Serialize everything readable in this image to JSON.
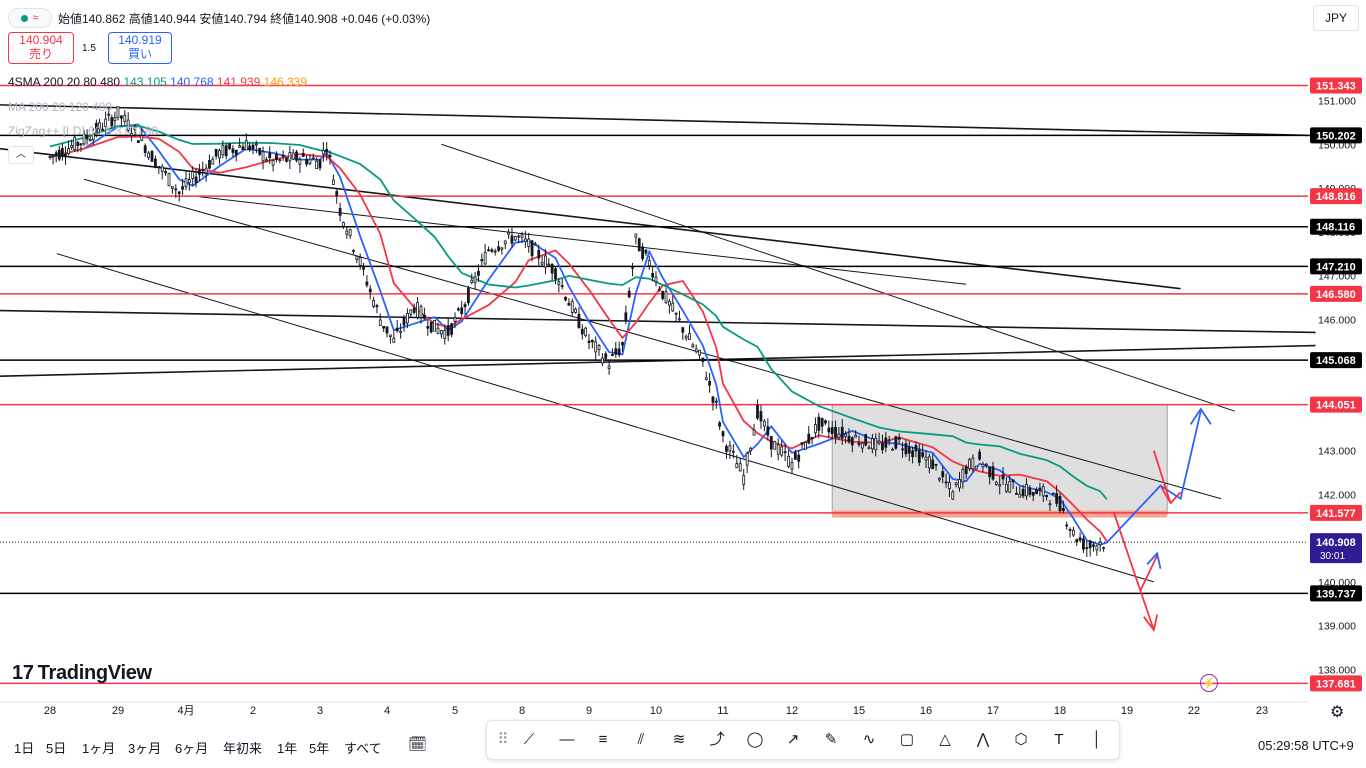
{
  "header": {
    "ohlc_text": "始値140.862  高値140.944  安値140.794  終値140.908  +0.046 (+0.03%)",
    "sell_price": "140.904",
    "sell_label": "売り",
    "buy_price": "140.919",
    "buy_label": "買い",
    "spread": "1.5",
    "currency": "JPY"
  },
  "indicators": {
    "sma_label": "4SMA 200 20 80 480",
    "sma_values": [
      {
        "value": "143.105",
        "color": "#089981"
      },
      {
        "value": "140.768",
        "color": "#2962ff"
      },
      {
        "value": "141.939",
        "color": "#f23645"
      },
      {
        "value": "146.339",
        "color": "#ff9800"
      }
    ],
    "ma2_label": "MA 200 20 120 480",
    "zigzag_label": "ZigZag++ [LD] 60 5 3 0 0 80",
    "collapse_icon": "chevron-up-icon"
  },
  "chart_data": {
    "type": "candlestick",
    "title": "",
    "ylim": [
      137.3,
      152.2
    ],
    "y_ticks": [
      138.0,
      139.0,
      140.0,
      141.0,
      142.0,
      143.0,
      144.0,
      145.0,
      146.0,
      147.0,
      148.0,
      149.0,
      150.0,
      151.0
    ],
    "x_ticks": [
      "28",
      "29",
      "4月",
      "2",
      "3",
      "4",
      "5",
      "8",
      "9",
      "10",
      "11",
      "12",
      "15",
      "16",
      "17",
      "18",
      "19",
      "22",
      "23"
    ],
    "close_path": [
      [
        0,
        149.7
      ],
      [
        0.5,
        150.1
      ],
      [
        1,
        150.7
      ],
      [
        1.3,
        150.2
      ],
      [
        1.6,
        149.5
      ],
      [
        1.9,
        148.9
      ],
      [
        2.1,
        149.2
      ],
      [
        2.5,
        149.8
      ],
      [
        2.9,
        150.0
      ],
      [
        3.3,
        149.6
      ],
      [
        3.7,
        149.7
      ],
      [
        4.0,
        149.6
      ],
      [
        4.1,
        150.0
      ],
      [
        4.3,
        148.5
      ],
      [
        4.6,
        147.3
      ],
      [
        4.9,
        146.0
      ],
      [
        5.1,
        145.5
      ],
      [
        5.4,
        146.3
      ],
      [
        5.7,
        145.8
      ],
      [
        5.9,
        145.7
      ],
      [
        6.1,
        146.2
      ],
      [
        6.5,
        147.6
      ],
      [
        6.9,
        147.9
      ],
      [
        7.1,
        147.7
      ],
      [
        7.5,
        147.1
      ],
      [
        7.7,
        146.4
      ],
      [
        8.0,
        145.5
      ],
      [
        8.3,
        145.0
      ],
      [
        8.5,
        145.4
      ],
      [
        8.7,
        147.8
      ],
      [
        8.9,
        147.3
      ],
      [
        9.1,
        146.6
      ],
      [
        9.4,
        145.8
      ],
      [
        9.7,
        145.0
      ],
      [
        9.9,
        144.0
      ],
      [
        10.0,
        143.3
      ],
      [
        10.3,
        142.4
      ],
      [
        10.5,
        143.9
      ],
      [
        10.7,
        143.2
      ],
      [
        11.0,
        142.7
      ],
      [
        11.4,
        143.6
      ],
      [
        11.9,
        143.3
      ],
      [
        12.3,
        143.1
      ],
      [
        12.6,
        143.2
      ],
      [
        13.1,
        142.7
      ],
      [
        13.4,
        142.0
      ],
      [
        13.6,
        142.6
      ],
      [
        13.8,
        142.8
      ],
      [
        14.1,
        142.3
      ],
      [
        14.4,
        142.1
      ],
      [
        14.8,
        142.0
      ],
      [
        15.0,
        141.8
      ],
      [
        15.2,
        141.1
      ],
      [
        15.4,
        140.8
      ],
      [
        15.6,
        140.9
      ],
      [
        15.7,
        140.9
      ]
    ],
    "series": [
      {
        "type": "sma",
        "values": "143.105",
        "color": "#089981"
      },
      {
        "type": "sma",
        "values": "140.768",
        "color": "#2962ff"
      },
      {
        "type": "sma",
        "values": "141.939",
        "color": "#f23645"
      },
      {
        "type": "sma",
        "values": "146.339",
        "color": "#ff9800"
      }
    ],
    "levels": [
      {
        "value": 151.343,
        "label": "151.343",
        "color": "#f23645"
      },
      {
        "value": 150.202,
        "label": "150.202",
        "color": "#000000"
      },
      {
        "value": 148.816,
        "label": "148.816",
        "color": "#f23645"
      },
      {
        "value": 148.116,
        "label": "148.116",
        "color": "#000000"
      },
      {
        "value": 147.21,
        "label": "147.210",
        "color": "#000000"
      },
      {
        "value": 146.58,
        "label": "146.580",
        "color": "#f23645"
      },
      {
        "value": 145.068,
        "label": "145.068",
        "color": "#000000"
      },
      {
        "value": 144.051,
        "label": "144.051",
        "color": "#f23645"
      },
      {
        "value": 141.577,
        "label": "141.577",
        "color": "#f23645"
      },
      {
        "value": 139.737,
        "label": "139.737",
        "color": "#000000"
      },
      {
        "value": 137.681,
        "label": "137.681",
        "color": "#f23645"
      }
    ],
    "current_price": {
      "value": 140.908,
      "label": "140.908",
      "countdown": "30:01",
      "color": "#311b92"
    },
    "range_box": {
      "x_start": 11.6,
      "x_end": 16.6,
      "y_low": 141.55,
      "y_high": 144.05
    },
    "scenario_up_color": "#2962ff",
    "scenario_down_color": "#f23645"
  },
  "branding": {
    "logo_text": "TradingView"
  },
  "bottom_bar": {
    "timeframes": [
      "1日",
      "5日",
      "1ヶ月",
      "3ヶ月",
      "6ヶ月",
      "年初来",
      "1年",
      "5年",
      "すべて"
    ],
    "compare_icon": "calendar-range-icon",
    "clock": "05:29:58 UTC+9"
  },
  "drawing_tools": [
    "drag-handle-icon",
    "trend-line-icon",
    "horizontal-ray-icon",
    "parallel-channel-icon",
    "regression-icon",
    "fib-icon",
    "path-icon",
    "ellipse-icon",
    "arrow-icon",
    "brush-icon",
    "curve-icon",
    "rectangle-icon",
    "triangle-icon",
    "polyline-icon",
    "pattern-icon",
    "text-icon",
    "vertical-line-icon"
  ]
}
